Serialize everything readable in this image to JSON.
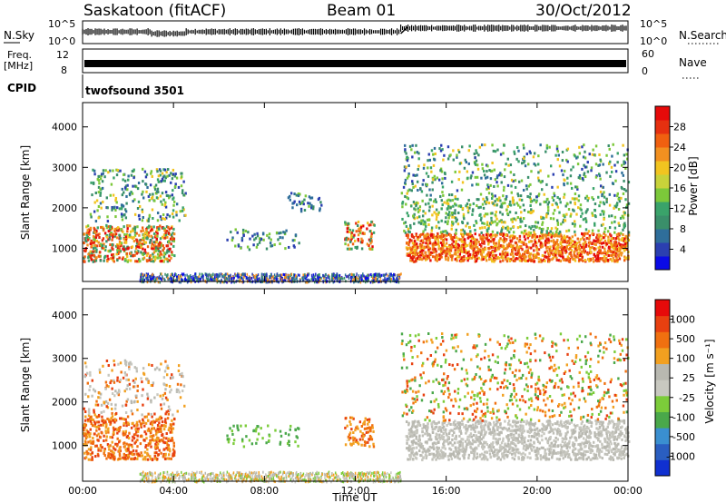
{
  "header": {
    "station": "Saskatoon (fitACF)",
    "beam": "Beam 01",
    "date": "30/Oct/2012"
  },
  "status_panels": {
    "nsky_label": "N.Sky",
    "nsearch_label": "N.Search",
    "nsky_ticks": [
      "10^5",
      "10^0"
    ],
    "nsearch_ticks": [
      "10^5",
      "10^0"
    ],
    "freq_label": "Freq.",
    "freq_unit": "[MHz]",
    "freq_ticks": [
      "12",
      "8"
    ],
    "nave_label": "Nave",
    "nave_ticks": [
      "60",
      "0"
    ],
    "cpid_label": "CPID",
    "cpid_value": "twofsound 3501"
  },
  "chart_data": [
    {
      "type": "heatmap",
      "parameter": "power",
      "ylabel": "Slant Range [km]",
      "yticks": [
        "4000",
        "3000",
        "2000",
        "1000"
      ],
      "ylim": [
        180,
        4600
      ],
      "xlim": [
        0,
        24
      ],
      "colorbar_label": "Power [dB]",
      "colorbar_ticks": [
        "28",
        "24",
        "20",
        "16",
        "12",
        "8",
        "4"
      ],
      "colorbar_colors": [
        "#0a0ae6",
        "#2b3fb0",
        "#2f6e9a",
        "#3a8f6a",
        "#3aa36a",
        "#7cc83a",
        "#c8d23a",
        "#f2c420",
        "#f29020",
        "#f06010",
        "#e63010",
        "#e60a0a"
      ]
    },
    {
      "type": "heatmap",
      "parameter": "velocity",
      "ylabel": "Slant Range [km]",
      "yticks": [
        "4000",
        "3000",
        "2000",
        "1000"
      ],
      "ylim": [
        180,
        4600
      ],
      "xlim": [
        0,
        24
      ],
      "xticks": [
        "00:00",
        "04:00",
        "08:00",
        "12:00",
        "16:00",
        "20:00",
        "00:00"
      ],
      "xlabel": "Time UT",
      "colorbar_label": "Velocity [m s⁻¹]",
      "colorbar_ticks": [
        "1000",
        "500",
        "100",
        "25",
        "-25",
        "-100",
        "-500",
        "-1000"
      ],
      "colorbar_colors": [
        "#1030d0",
        "#2a5ec0",
        "#3a8fd0",
        "#4aa84a",
        "#7ccc3a",
        "#c8c8c0",
        "#b8b8b0",
        "#f2a020",
        "#f07010",
        "#e84010",
        "#e60a0a"
      ]
    }
  ]
}
